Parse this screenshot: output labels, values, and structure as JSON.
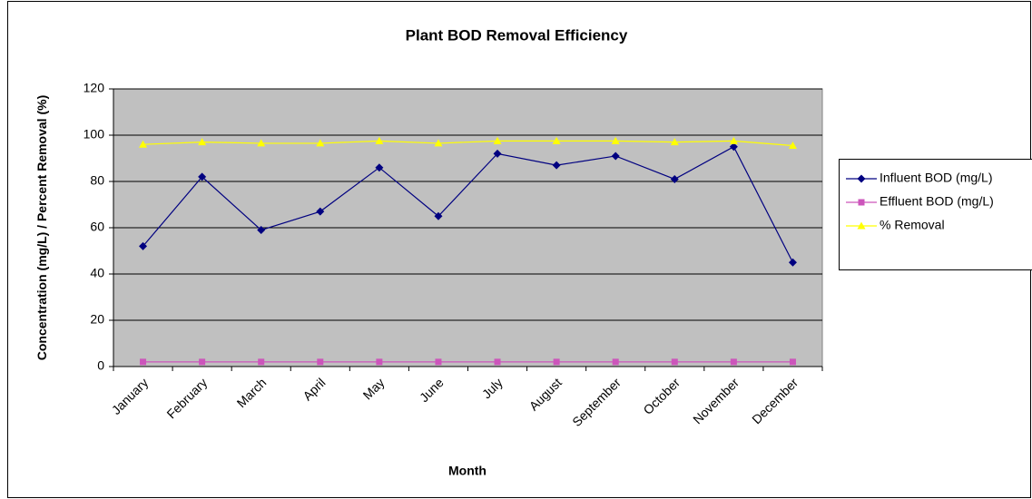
{
  "chart_data": {
    "type": "line",
    "title": "Plant BOD Removal Efficiency",
    "x_label": "Month",
    "y_label": "Concentration (mg/L) / Percent Removal (%)",
    "categories": [
      "January",
      "February",
      "March",
      "April",
      "May",
      "June",
      "July",
      "August",
      "September",
      "October",
      "November",
      "December"
    ],
    "series": [
      {
        "name": "Influent BOD (mg/L)",
        "color": "#000080",
        "marker": "diamond",
        "values": [
          52,
          82,
          59,
          67,
          86,
          65,
          92,
          87,
          91,
          81,
          95,
          45
        ]
      },
      {
        "name": "Effluent BOD (mg/L)",
        "color": "#cc55bb",
        "marker": "square",
        "values": [
          2,
          2,
          2,
          2,
          2,
          2,
          2,
          2,
          2,
          2,
          2,
          2
        ]
      },
      {
        "name": "% Removal",
        "color": "#ffff00",
        "marker": "triangle",
        "values": [
          96,
          97,
          96.5,
          96.5,
          97.5,
          96.5,
          97.5,
          97.5,
          97.5,
          97,
          97.5,
          95.5
        ]
      }
    ],
    "ylim": [
      0,
      120
    ],
    "yticks": [
      0,
      20,
      40,
      60,
      80,
      100,
      120
    ],
    "grid": true,
    "legend": "right"
  }
}
